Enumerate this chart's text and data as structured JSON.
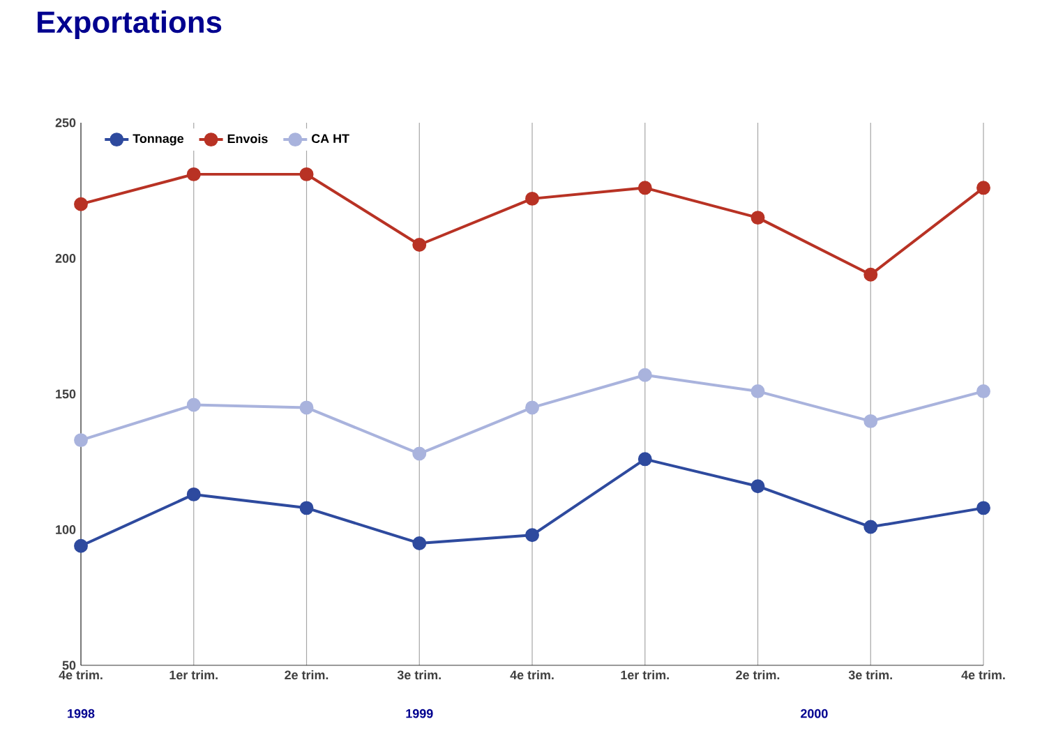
{
  "chart_data": {
    "type": "line",
    "title": "Exportations",
    "categories": [
      "4e trim.",
      "1er trim.",
      "2e trim.",
      "3e trim.",
      "4e trim.",
      "1er trim.",
      "2e trim.",
      "3e trim.",
      "4e trim."
    ],
    "series": [
      {
        "name": "Tonnage",
        "color": "#2e4a9e",
        "values": [
          94,
          113,
          108,
          95,
          98,
          126,
          116,
          101,
          108
        ]
      },
      {
        "name": "Envois",
        "color": "#b83224",
        "values": [
          220,
          231,
          231,
          205,
          222,
          226,
          215,
          194,
          226
        ]
      },
      {
        "name": "CA HT",
        "color": "#a9b3dd",
        "values": [
          133,
          146,
          145,
          128,
          145,
          157,
          151,
          140,
          151
        ]
      }
    ],
    "ylim": [
      50,
      250
    ],
    "yticks": [
      50,
      100,
      150,
      200,
      250
    ],
    "grid": "x",
    "legend": "top left",
    "marker": "circle",
    "line_style": "solid",
    "annotations": [
      "1998",
      "1999",
      "2000"
    ]
  }
}
